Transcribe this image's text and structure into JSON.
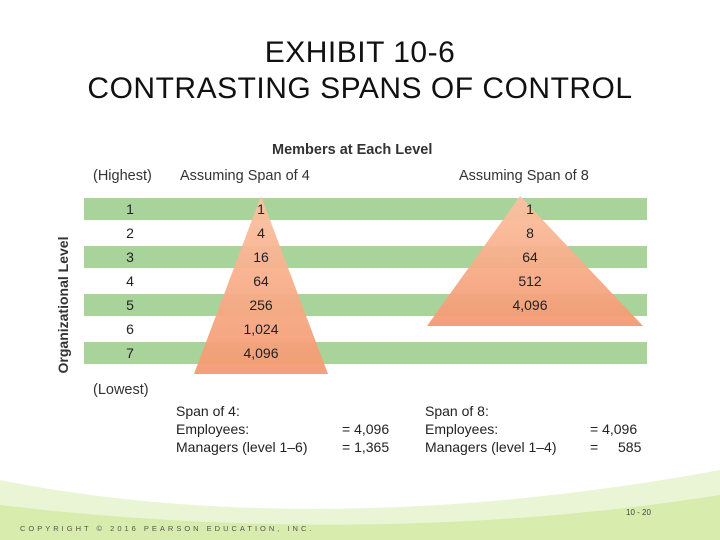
{
  "title_line1": "EXHIBIT 10-6",
  "title_line2": "CONTRASTING SPANS OF CONTROL",
  "exhibit": {
    "members_header": "Members at Each Level",
    "highest_label": "(Highest)",
    "lowest_label": "(Lowest)",
    "span4_header": "Assuming Span of 4",
    "span8_header": "Assuming Span of 8",
    "vertical_label": "Organizational Level",
    "rows": [
      {
        "level": "1",
        "span4": "1",
        "span8": "1"
      },
      {
        "level": "2",
        "span4": "4",
        "span8": "8"
      },
      {
        "level": "3",
        "span4": "16",
        "span8": "64"
      },
      {
        "level": "4",
        "span4": "64",
        "span8": "512"
      },
      {
        "level": "5",
        "span4": "256",
        "span8": "4,096"
      },
      {
        "level": "6",
        "span4": "1,024",
        "span8": ""
      },
      {
        "level": "7",
        "span4": "4,096",
        "span8": ""
      }
    ],
    "summary4": {
      "title": "Span of 4:",
      "employees_label": "Employees:",
      "employees_value": "= 4,096",
      "managers_label": "Managers (level 1–6)",
      "managers_value": "= 1,365"
    },
    "summary8": {
      "title": "Span of 8:",
      "employees_label": "Employees:",
      "employees_value": "= 4,096",
      "managers_label": "Managers (level 1–4)",
      "managers_eq": "=",
      "managers_value": "585"
    }
  },
  "footer": "COPYRIGHT © 2016 PEARSON EDUCATION, INC.",
  "page_number": "10 - 20",
  "colors": {
    "row_green": "#a8d39a",
    "pyramid_orange": "#f7a784",
    "slide_green": "#b8dc6a"
  }
}
